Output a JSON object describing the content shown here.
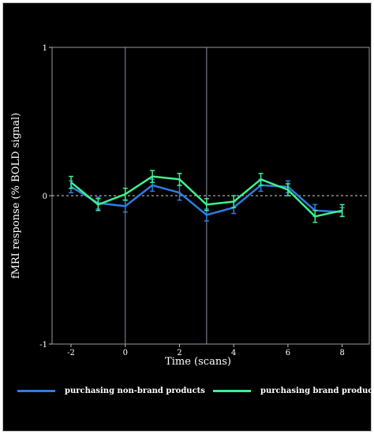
{
  "chart_data": {
    "type": "line",
    "xlabel": "Time (scans)",
    "ylabel": "fMRI response (% BOLD signal)",
    "xlim": [
      -2.7,
      9
    ],
    "ylim": [
      -1,
      1
    ],
    "x_ticks": [
      "-2",
      "0",
      "2",
      "4",
      "6",
      "8"
    ],
    "y_ticks": [
      "-1",
      "0",
      "1"
    ],
    "vertical_markers": [
      0,
      3
    ],
    "zero_line": "dashed",
    "legend_position": "bottom",
    "x": [
      -2,
      -1,
      0,
      1,
      2,
      3,
      4,
      5,
      6,
      7,
      8
    ],
    "series": [
      {
        "name": "purchasing non-brand products",
        "color": "#2f7de0",
        "values": [
          0.06,
          -0.05,
          -0.07,
          0.07,
          0.02,
          -0.13,
          -0.08,
          0.07,
          0.06,
          -0.1,
          -0.11
        ],
        "error": [
          0.04,
          0.04,
          0.04,
          0.04,
          0.05,
          0.04,
          0.04,
          0.04,
          0.04,
          0.04,
          0.03
        ]
      },
      {
        "name": "purchasing brand products",
        "color": "#3cf08f",
        "values": [
          0.09,
          -0.06,
          0.01,
          0.13,
          0.11,
          -0.06,
          -0.04,
          0.11,
          0.04,
          -0.14,
          -0.1
        ],
        "error": [
          0.04,
          0.04,
          0.04,
          0.04,
          0.04,
          0.04,
          0.04,
          0.04,
          0.04,
          0.04,
          0.04
        ]
      }
    ]
  }
}
